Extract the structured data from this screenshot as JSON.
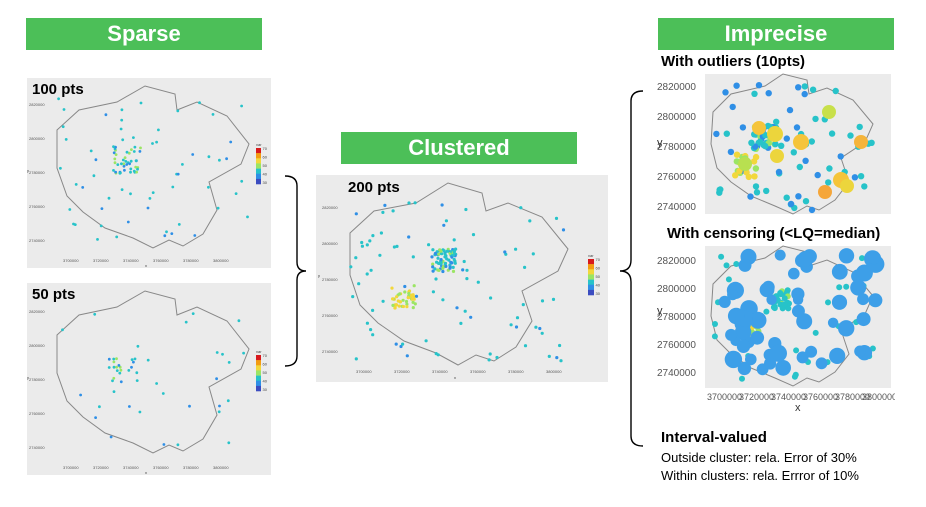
{
  "banners": {
    "sparse": "Sparse",
    "clustered": "Clustered",
    "imprecise": "Imprecise"
  },
  "panels": {
    "p100": {
      "label": "100 pts"
    },
    "p50": {
      "label": "50 pts"
    },
    "p200": {
      "label": "200 pts"
    }
  },
  "imprecise": {
    "outliers_heading": "With outliers (10pts)",
    "censoring_heading": "With censoring (<LQ=median)",
    "interval_heading": "Interval-valued",
    "interval_line1": "Outside cluster: rela. Error of 30%",
    "interval_line2": "Within clusters: rela. Errror of 10%"
  },
  "small_axis": {
    "y_ticks": [
      "2820000",
      "2800000",
      "2780000",
      "2760000",
      "2740000"
    ],
    "x_ticks": [
      "3700000",
      "3720000",
      "3740000",
      "3760000",
      "3780000",
      "3800000"
    ],
    "x_title": "x",
    "y_title": "y"
  },
  "large_axis": {
    "y_ticks": [
      "2820000",
      "2800000",
      "2780000",
      "2760000",
      "2740000"
    ],
    "x_ticks": [
      "3700000",
      "3720000",
      "3740000",
      "3760000",
      "3780000",
      "3800000"
    ],
    "x_title": "x",
    "y_title": "y"
  },
  "legend": {
    "title": "var",
    "labels": [
      "70",
      "60",
      "50",
      "40",
      "30"
    ]
  },
  "colors": {
    "banner": "#4cbf58",
    "panel": "#ebebeb",
    "outline": "#888888"
  }
}
